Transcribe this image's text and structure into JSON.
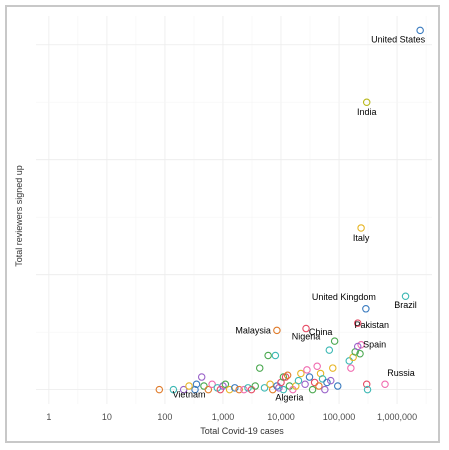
{
  "chart_data": {
    "type": "scatter",
    "title": "",
    "xlabel": "Total Covid-19 cases",
    "ylabel": "Total reviewers signed up",
    "x_scale": "log",
    "xlim": [
      0.6,
      4000000
    ],
    "ylim": [
      -0.04,
      1.04
    ],
    "x_ticks": [
      1,
      10,
      100,
      1000,
      10000,
      100000,
      1000000
    ],
    "x_tick_labels": [
      "1",
      "10",
      "100",
      "1,000",
      "10,000",
      "100,000",
      "1,000,000"
    ],
    "y_gridlines": [
      0.0,
      0.32,
      0.64,
      0.96
    ],
    "y_tick_labels": "none",
    "grid": true,
    "legend": "none",
    "marker": "open-circle",
    "palette": [
      "#3a7bbf",
      "#e7b627",
      "#3cb8b4",
      "#e64b64",
      "#e07b2a",
      "#4aa84f",
      "#9a63c9",
      "#f06bb0"
    ],
    "points": [
      {
        "x": 2500000,
        "y": 1.0,
        "color": "#3a7bbf",
        "label": "United States"
      },
      {
        "x": 300000,
        "y": 0.8,
        "color": "#b8b81a",
        "label": "India"
      },
      {
        "x": 240000,
        "y": 0.45,
        "color": "#e7b627",
        "label": "Italy"
      },
      {
        "x": 1400000,
        "y": 0.26,
        "color": "#3cb8b4",
        "label": "Brazil"
      },
      {
        "x": 290000,
        "y": 0.225,
        "color": "#3a7bbf",
        "label": "United Kingdom"
      },
      {
        "x": 8500,
        "y": 0.165,
        "color": "#e07b2a",
        "label": "Malaysia"
      },
      {
        "x": 27000,
        "y": 0.17,
        "color": "#e64b64",
        "label": "Nigeria"
      },
      {
        "x": 210000,
        "y": 0.185,
        "color": "#e64b64",
        "label": "Pakistan"
      },
      {
        "x": 84000,
        "y": 0.135,
        "color": "#4aa84f",
        "label": "China"
      },
      {
        "x": 240000,
        "y": 0.125,
        "color": "#f06bb0",
        "label": "Spain"
      },
      {
        "x": 620000,
        "y": 0.015,
        "color": "#f06bb0",
        "label": "Russia"
      },
      {
        "x": 330,
        "y": 0.0,
        "color": "#3a7bbf",
        "label": "Vietnam"
      },
      {
        "x": 11000,
        "y": 0.0,
        "color": "#3cb8b4",
        "label": "Algeria"
      },
      {
        "x": 80,
        "y": 0.0,
        "color": "#e07b2a"
      },
      {
        "x": 140,
        "y": 0.0,
        "color": "#3cb8b4"
      },
      {
        "x": 210,
        "y": 0.0,
        "color": "#9a63c9"
      },
      {
        "x": 260,
        "y": 0.01,
        "color": "#e7b627"
      },
      {
        "x": 350,
        "y": 0.015,
        "color": "#3a7bbf"
      },
      {
        "x": 430,
        "y": 0.035,
        "color": "#9a63c9"
      },
      {
        "x": 470,
        "y": 0.01,
        "color": "#4aa84f"
      },
      {
        "x": 560,
        "y": 0.0,
        "color": "#e07b2a"
      },
      {
        "x": 650,
        "y": 0.015,
        "color": "#f06bb0"
      },
      {
        "x": 800,
        "y": 0.005,
        "color": "#3cb8b4"
      },
      {
        "x": 900,
        "y": 0.0,
        "color": "#e64b64"
      },
      {
        "x": 1000,
        "y": 0.01,
        "color": "#9a63c9"
      },
      {
        "x": 1100,
        "y": 0.015,
        "color": "#4aa84f"
      },
      {
        "x": 1300,
        "y": 0.0,
        "color": "#e7b627"
      },
      {
        "x": 1600,
        "y": 0.005,
        "color": "#3a7bbf"
      },
      {
        "x": 1900,
        "y": 0.0,
        "color": "#e07b2a"
      },
      {
        "x": 2300,
        "y": 0.0,
        "color": "#f06bb0"
      },
      {
        "x": 2700,
        "y": 0.005,
        "color": "#3cb8b4"
      },
      {
        "x": 3100,
        "y": 0.0,
        "color": "#e64b64"
      },
      {
        "x": 3600,
        "y": 0.01,
        "color": "#4aa84f"
      },
      {
        "x": 4300,
        "y": 0.06,
        "color": "#4aa84f"
      },
      {
        "x": 5200,
        "y": 0.005,
        "color": "#3cb8b4"
      },
      {
        "x": 6000,
        "y": 0.095,
        "color": "#4aa84f"
      },
      {
        "x": 6500,
        "y": 0.015,
        "color": "#e7b627"
      },
      {
        "x": 7200,
        "y": 0.0,
        "color": "#e07b2a"
      },
      {
        "x": 8000,
        "y": 0.095,
        "color": "#3cb8b4"
      },
      {
        "x": 8500,
        "y": 0.01,
        "color": "#3a7bbf"
      },
      {
        "x": 9200,
        "y": 0.005,
        "color": "#9a63c9"
      },
      {
        "x": 10000,
        "y": 0.02,
        "color": "#e64b64"
      },
      {
        "x": 11000,
        "y": 0.035,
        "color": "#4aa84f"
      },
      {
        "x": 12000,
        "y": 0.035,
        "color": "#e64b64"
      },
      {
        "x": 13000,
        "y": 0.04,
        "color": "#e07b2a"
      },
      {
        "x": 14000,
        "y": 0.01,
        "color": "#4aa84f"
      },
      {
        "x": 16000,
        "y": 0.0,
        "color": "#f06bb0"
      },
      {
        "x": 18000,
        "y": 0.01,
        "color": "#e7b627"
      },
      {
        "x": 20000,
        "y": 0.025,
        "color": "#3cb8b4"
      },
      {
        "x": 22000,
        "y": 0.045,
        "color": "#e7b627"
      },
      {
        "x": 26000,
        "y": 0.015,
        "color": "#9a63c9"
      },
      {
        "x": 28000,
        "y": 0.055,
        "color": "#f06bb0"
      },
      {
        "x": 31000,
        "y": 0.035,
        "color": "#3a7bbf"
      },
      {
        "x": 35000,
        "y": 0.0,
        "color": "#4aa84f"
      },
      {
        "x": 38000,
        "y": 0.02,
        "color": "#e64b64"
      },
      {
        "x": 42000,
        "y": 0.065,
        "color": "#f06bb0"
      },
      {
        "x": 45000,
        "y": 0.01,
        "color": "#e07b2a"
      },
      {
        "x": 48000,
        "y": 0.045,
        "color": "#e7b627"
      },
      {
        "x": 52000,
        "y": 0.03,
        "color": "#3cb8b4"
      },
      {
        "x": 57000,
        "y": 0.0,
        "color": "#9a63c9"
      },
      {
        "x": 62000,
        "y": 0.02,
        "color": "#3a7bbf"
      },
      {
        "x": 68000,
        "y": 0.11,
        "color": "#3cb8b4"
      },
      {
        "x": 72000,
        "y": 0.025,
        "color": "#9a63c9"
      },
      {
        "x": 78000,
        "y": 0.06,
        "color": "#e7b627"
      },
      {
        "x": 95000,
        "y": 0.01,
        "color": "#3a7bbf"
      },
      {
        "x": 150000,
        "y": 0.08,
        "color": "#3cb8b4"
      },
      {
        "x": 160000,
        "y": 0.06,
        "color": "#f06bb0"
      },
      {
        "x": 175000,
        "y": 0.09,
        "color": "#e7b627"
      },
      {
        "x": 190000,
        "y": 0.105,
        "color": "#4aa84f"
      },
      {
        "x": 210000,
        "y": 0.12,
        "color": "#9a63c9"
      },
      {
        "x": 230000,
        "y": 0.1,
        "color": "#4aa84f"
      },
      {
        "x": 300000,
        "y": 0.015,
        "color": "#e64b64"
      },
      {
        "x": 310000,
        "y": 0.0,
        "color": "#3cb8b4"
      }
    ]
  }
}
